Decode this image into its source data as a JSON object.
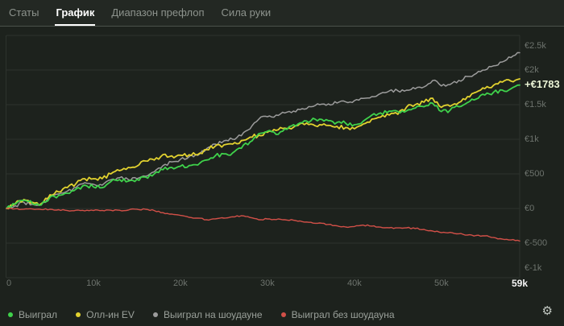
{
  "tabs": [
    {
      "label": "Статы",
      "active": false
    },
    {
      "label": "График",
      "active": true
    },
    {
      "label": "Диапазон префлоп",
      "active": false
    },
    {
      "label": "Сила руки",
      "active": false
    }
  ],
  "chart_data": {
    "type": "line",
    "xlabel": "hands",
    "x_start": 0,
    "x_step_hands": 1000,
    "xlim": [
      0,
      59000
    ],
    "ylim": [
      -1000,
      2500
    ],
    "grid": "horizontal",
    "legend_position": "bottom",
    "y_ticks": [
      {
        "label": "€2.5k",
        "value": 2500
      },
      {
        "label": "€2k",
        "value": 2000
      },
      {
        "label": "€1.5k",
        "value": 1500
      },
      {
        "label": "€1k",
        "value": 1000
      },
      {
        "label": "€500",
        "value": 500
      },
      {
        "label": "€0",
        "value": 0
      },
      {
        "label": "€-500",
        "value": -500
      },
      {
        "label": "€-1k",
        "value": -1000
      }
    ],
    "x_ticks": [
      {
        "label": "0",
        "value": 0,
        "current": false
      },
      {
        "label": "10k",
        "value": 10000,
        "current": false
      },
      {
        "label": "20k",
        "value": 20000,
        "current": false
      },
      {
        "label": "30k",
        "value": 30000,
        "current": false
      },
      {
        "label": "40k",
        "value": 40000,
        "current": false
      },
      {
        "label": "50k",
        "value": 50000,
        "current": false
      },
      {
        "label": "59k",
        "value": 59000,
        "current": true
      }
    ],
    "annotation": {
      "label": "+€1783",
      "value": 1783,
      "color": "#ecf5d7"
    },
    "series": [
      {
        "name": "Выиграл",
        "color": "#3fd24b",
        "width": 1.8,
        "noise": 30,
        "values": [
          0,
          60,
          120,
          70,
          50,
          160,
          190,
          220,
          280,
          337,
          310,
          300,
          390,
          419,
          395,
          420,
          453,
          500,
          560,
          593,
          610,
          620,
          628,
          700,
          760,
          790,
          802,
          870,
          960,
          1080,
          1116,
          1070,
          1150,
          1210,
          1240,
          1268,
          1291,
          1270,
          1244,
          1230,
          1210,
          1260,
          1349,
          1380,
          1407,
          1400,
          1410,
          1450,
          1470,
          1520,
          1400,
          1420,
          1470,
          1530,
          1580,
          1640,
          1680,
          1710,
          1730,
          1783
        ]
      },
      {
        "name": "Олл-ин EV",
        "color": "#e2d22f",
        "width": 1.8,
        "noise": 30,
        "values": [
          0,
          70,
          130,
          90,
          70,
          198,
          240,
          302,
          360,
          430,
          430,
          430,
          500,
          547,
          593,
          610,
          686,
          700,
          779,
          760,
          770,
          775,
          779,
          850,
          900,
          919,
          930,
          980,
          1030,
          1058,
          1100,
          1128,
          1160,
          1175,
          1233,
          1220,
          1210,
          1200,
          1186,
          1170,
          1151,
          1220,
          1291,
          1320,
          1349,
          1360,
          1465,
          1500,
          1535,
          1593,
          1460,
          1477,
          1530,
          1616,
          1680,
          1733,
          1780,
          1826,
          1840,
          1872
        ]
      },
      {
        "name": "Выиграл на шоудауне",
        "color": "#9c9c9c",
        "width": 1.5,
        "noise": 25,
        "values": [
          0,
          40,
          90,
          60,
          55,
          170,
          210,
          250,
          305,
          372,
          350,
          337,
          415,
          444,
          418,
          430,
          465,
          530,
          620,
          673,
          710,
          748,
          768,
          863,
          930,
          977,
          1000,
          1050,
          1150,
          1290,
          1326,
          1349,
          1380,
          1407,
          1442,
          1470,
          1500,
          1510,
          1523,
          1540,
          1558,
          1590,
          1616,
          1660,
          1698,
          1700,
          1709,
          1730,
          1756,
          1849,
          1770,
          1791,
          1850,
          1907,
          1950,
          2000,
          2060,
          2116,
          2180,
          2250
        ]
      },
      {
        "name": "Выиграл без шоудауна",
        "color": "#d25048",
        "width": 1.4,
        "noise": 10,
        "values": [
          0,
          -5,
          -10,
          -8,
          -15,
          -12,
          -18,
          -30,
          -25,
          -35,
          -30,
          -28,
          -25,
          -25,
          -23,
          -10,
          -12,
          -30,
          -60,
          -80,
          -100,
          -128,
          -140,
          -163,
          -150,
          -140,
          -120,
          -105,
          -130,
          -163,
          -151,
          -160,
          -163,
          -170,
          -190,
          -200,
          -209,
          -230,
          -250,
          -267,
          -260,
          -240,
          -255,
          -270,
          -279,
          -280,
          -279,
          -290,
          -302,
          -326,
          -350,
          -345,
          -365,
          -384,
          -390,
          -395,
          -420,
          -442,
          -455,
          -470
        ]
      }
    ]
  },
  "legend": {
    "items": [
      {
        "label": "Выиграл",
        "color": "#3fd24b"
      },
      {
        "label": "Олл-ин EV",
        "color": "#e2d22f"
      },
      {
        "label": "Выиграл на шоудауне",
        "color": "#9c9c9c"
      },
      {
        "label": "Выиграл без шоудауна",
        "color": "#d25048"
      }
    ]
  },
  "icons": {
    "settings_gear": "⚙"
  },
  "colors": {
    "background": "#1d221d",
    "tabbar_background": "#232823",
    "tabbar_border": "#4b514b",
    "gridline": "#2d332d",
    "tick_text": "#6d736d",
    "active_tick_text": "#f5f5f5",
    "annotation_text": "#ecf5d7"
  }
}
